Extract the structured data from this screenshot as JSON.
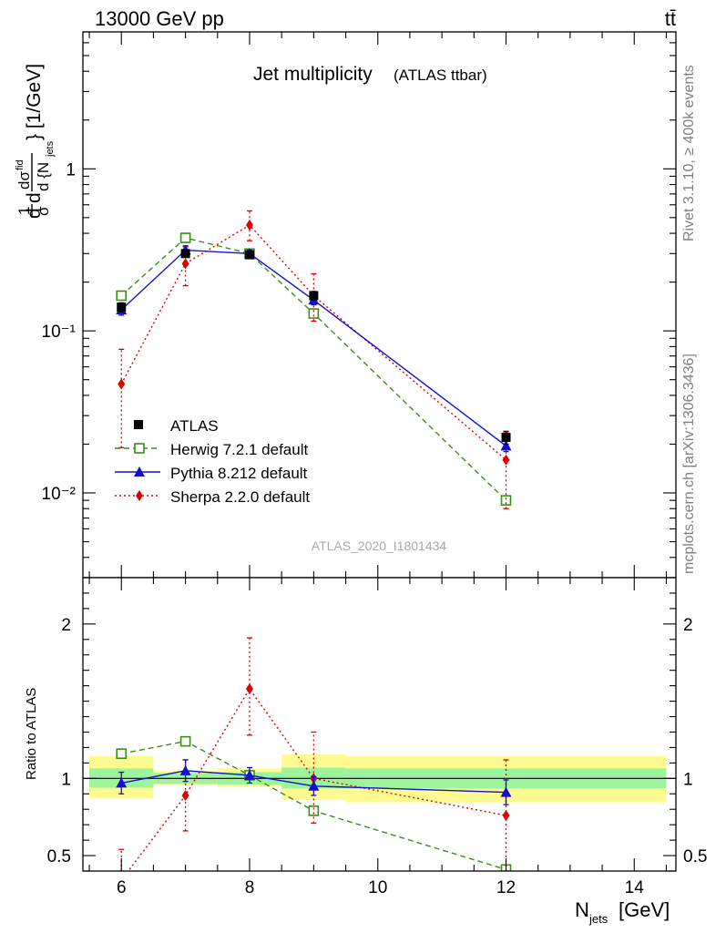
{
  "header": {
    "energy_label": "13000 GeV pp",
    "process_label": "tt̄"
  },
  "side_labels": {
    "rivet": "Rivet 3.1.10, ≥ 400k events",
    "mcplots": "mcplots.cern.ch [arXiv:1306.3436]"
  },
  "chart_data": [
    {
      "type": "line",
      "panel": "main",
      "title": "Jet multiplicity",
      "title_suffix": "(ATLAS ttbar)",
      "ylabel": "1/σ dσ^fid/d{N_jets} [1/GeV]",
      "yscale": "log",
      "ylim": [
        0.003,
        7
      ],
      "xlim": [
        5.4,
        14.65
      ],
      "ytick_labels": [
        "1",
        "10⁻¹",
        "10⁻²"
      ],
      "analysis_tag": "ATLAS_2020_I1801434",
      "legend_position": "bottom-left",
      "series": [
        {
          "name": "ATLAS",
          "color": "#000000",
          "marker": "square-filled",
          "line": "none",
          "x": [
            6,
            7,
            8,
            9,
            12
          ],
          "y": [
            0.14,
            0.3,
            0.295,
            0.165,
            0.022
          ],
          "yerr_lo": [
            0.009,
            0.012,
            0.012,
            0.01,
            0.002
          ],
          "yerr_hi": [
            0.009,
            0.012,
            0.012,
            0.01,
            0.002
          ]
        },
        {
          "name": "Herwig 7.2.1 default",
          "color": "#3a8d1a",
          "marker": "square-open",
          "line": "dashed",
          "x": [
            6,
            7,
            8,
            9,
            12
          ],
          "y": [
            0.165,
            0.375,
            0.3,
            0.128,
            0.009
          ],
          "yerr_lo": [
            0.005,
            0.008,
            0.008,
            0.005,
            0.0005
          ],
          "yerr_hi": [
            0.005,
            0.008,
            0.008,
            0.005,
            0.0005
          ]
        },
        {
          "name": "Pythia 8.212 default",
          "color": "#1111cc",
          "marker": "triangle-filled",
          "line": "solid",
          "x": [
            6,
            7,
            8,
            9,
            12
          ],
          "y": [
            0.135,
            0.315,
            0.3,
            0.155,
            0.0195
          ],
          "yerr_lo": [
            0.01,
            0.02,
            0.015,
            0.01,
            0.0015
          ],
          "yerr_hi": [
            0.01,
            0.02,
            0.015,
            0.01,
            0.0015
          ]
        },
        {
          "name": "Sherpa 2.2.0 default",
          "color": "#dd0000",
          "marker": "diamond-filled",
          "line": "dotted",
          "x": [
            6,
            7,
            8,
            9,
            12
          ],
          "y": [
            0.047,
            0.26,
            0.45,
            0.165,
            0.016
          ],
          "yerr_lo": [
            0.028,
            0.07,
            0.09,
            0.05,
            0.008
          ],
          "yerr_hi": [
            0.03,
            0.07,
            0.1,
            0.06,
            0.0075
          ]
        }
      ]
    },
    {
      "type": "line",
      "panel": "ratio",
      "ylabel": "Ratio to ATLAS",
      "xlabel": "N_jets [GeV]",
      "ylim": [
        0.4,
        2.3
      ],
      "xlim": [
        5.4,
        14.65
      ],
      "xtick_labels": [
        "6",
        "8",
        "10",
        "12",
        "14"
      ],
      "ytick_labels": [
        "0.5",
        "1",
        "2"
      ],
      "uncertainty_bands": [
        {
          "x0": 5.5,
          "x1": 6.5,
          "stat_lo": 0.94,
          "stat_hi": 1.065,
          "tot_lo": 0.87,
          "tot_hi": 1.145
        },
        {
          "x0": 6.5,
          "x1": 7.5,
          "stat_lo": 0.965,
          "stat_hi": 1.035,
          "tot_lo": 0.955,
          "tot_hi": 1.05
        },
        {
          "x0": 7.5,
          "x1": 8.5,
          "stat_lo": 0.96,
          "stat_hi": 1.04,
          "tot_lo": 0.945,
          "tot_hi": 1.065
        },
        {
          "x0": 8.5,
          "x1": 9.5,
          "stat_lo": 0.935,
          "stat_hi": 1.07,
          "tot_lo": 0.86,
          "tot_hi": 1.155
        },
        {
          "x0": 9.5,
          "x1": 14.5,
          "stat_lo": 0.935,
          "stat_hi": 1.065,
          "tot_lo": 0.845,
          "tot_hi": 1.145
        }
      ],
      "series": [
        {
          "name": "Herwig 7.2.1 default",
          "color": "#3a8d1a",
          "marker": "square-open",
          "line": "dashed",
          "x": [
            6,
            7,
            8,
            9,
            12
          ],
          "y": [
            1.16,
            1.24,
            1.02,
            0.79,
            0.41
          ],
          "yerr_lo": [
            0,
            0,
            0,
            0,
            0
          ],
          "yerr_hi": [
            0,
            0,
            0,
            0,
            0
          ]
        },
        {
          "name": "Pythia 8.212 default",
          "color": "#1111cc",
          "marker": "triangle-filled",
          "line": "solid",
          "x": [
            6,
            7,
            8,
            9,
            12
          ],
          "y": [
            0.97,
            1.05,
            1.02,
            0.95,
            0.91
          ],
          "yerr_lo": [
            0.07,
            0.07,
            0.05,
            0.06,
            0.08
          ],
          "yerr_hi": [
            0.07,
            0.07,
            0.05,
            0.06,
            0.08
          ]
        },
        {
          "name": "Sherpa 2.2.0 default",
          "color": "#dd0000",
          "marker": "diamond-filled",
          "line": "dotted",
          "x": [
            6,
            7,
            8,
            9,
            12
          ],
          "y": [
            0.34,
            0.89,
            1.58,
            1.0,
            0.76
          ],
          "yerr_lo": [
            0.2,
            0.23,
            0.3,
            0.29,
            0.36
          ],
          "yerr_hi": [
            0.2,
            0.23,
            0.33,
            0.3,
            0.36
          ]
        }
      ]
    }
  ]
}
